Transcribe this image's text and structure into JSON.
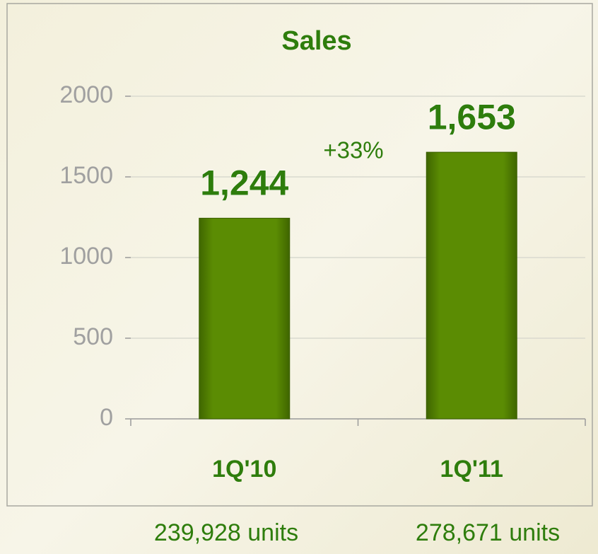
{
  "chart_data": {
    "type": "bar",
    "title": "Sales",
    "categories": [
      "1Q'10",
      "1Q'11"
    ],
    "values": [
      1244,
      1653
    ],
    "value_labels": [
      "1,244",
      "1,653"
    ],
    "category_notes": [
      "239,928 units",
      "278,671 units"
    ],
    "annotations": [
      "+33%"
    ],
    "color": "#5b8c03",
    "ylim": [
      0,
      2000
    ],
    "yticks": [
      0,
      500,
      1000,
      1500,
      2000
    ],
    "grid": true
  }
}
